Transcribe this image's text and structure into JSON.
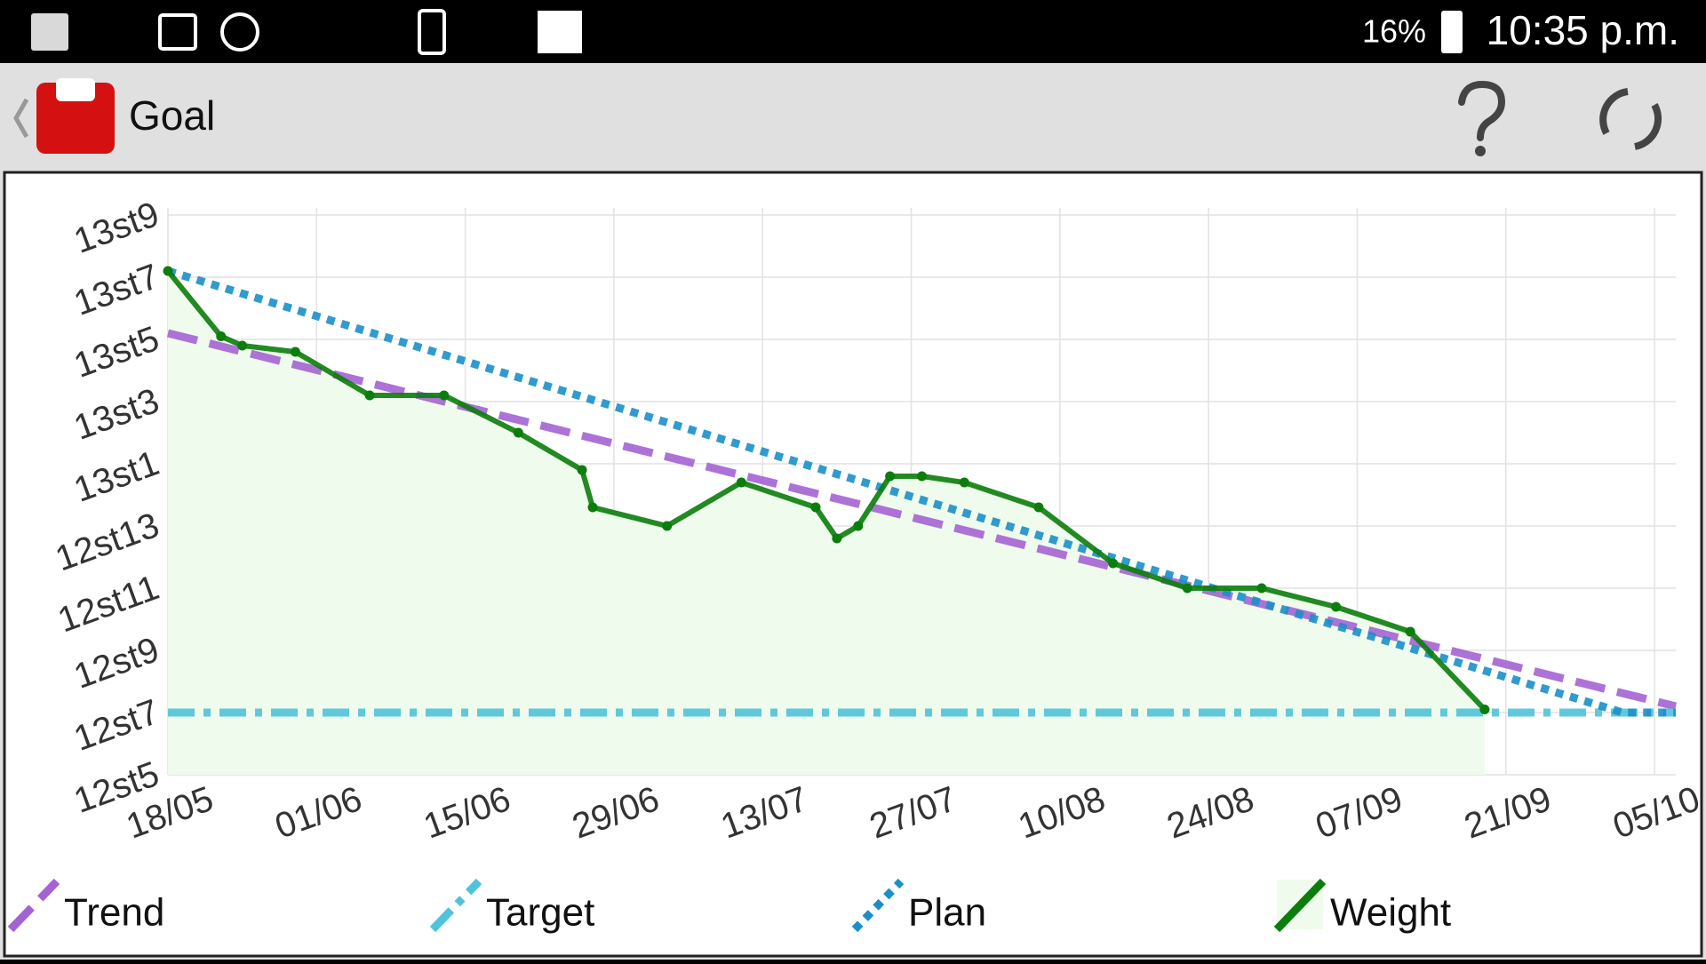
{
  "status_bar": {
    "battery": "16%",
    "time": "10:35 p.m."
  },
  "app_bar": {
    "title": "Goal"
  },
  "chart_data": {
    "type": "line",
    "xlim": [
      "18/05",
      "07/10"
    ],
    "xticks": [
      "18/05",
      "01/06",
      "15/06",
      "29/06",
      "13/07",
      "27/07",
      "10/08",
      "24/08",
      "07/09",
      "21/09",
      "05/10"
    ],
    "ylim": [
      173,
      191
    ],
    "yticks": [
      {
        "value": 173,
        "label": "12st5"
      },
      {
        "value": 175,
        "label": "12st7"
      },
      {
        "value": 177,
        "label": "12st9"
      },
      {
        "value": 179,
        "label": "12st11"
      },
      {
        "value": 181,
        "label": "12st13"
      },
      {
        "value": 183,
        "label": "13st1"
      },
      {
        "value": 185,
        "label": "13st3"
      },
      {
        "value": 187,
        "label": "13st5"
      },
      {
        "value": 189,
        "label": "13st7"
      },
      {
        "value": 191,
        "label": "13st9"
      }
    ],
    "grid": true,
    "series": [
      {
        "name": "Trend",
        "color": "#a463d4",
        "style": "dashed",
        "x": [
          "18/05",
          "07/10"
        ],
        "values": [
          187.2,
          175.2
        ]
      },
      {
        "name": "Target",
        "color": "#4fc3d9",
        "style": "dashdot",
        "x": [
          "18/05",
          "07/10"
        ],
        "values": [
          175,
          175
        ]
      },
      {
        "name": "Plan",
        "color": "#1b8fc9",
        "style": "dotted",
        "x": [
          "18/05",
          "02/10",
          "07/10"
        ],
        "values": [
          189.2,
          175,
          175
        ]
      },
      {
        "name": "Weight",
        "color": "#0b7d0b",
        "style": "solid",
        "fill_color": "#effbec",
        "markers": true,
        "x": [
          "18/05",
          "23/05",
          "25/05",
          "30/05",
          "06/06",
          "13/06",
          "20/06",
          "26/06",
          "27/06",
          "04/07",
          "11/07",
          "18/07",
          "20/07",
          "22/07",
          "25/07",
          "28/07",
          "01/08",
          "08/08",
          "15/08",
          "22/08",
          "29/08",
          "05/09",
          "12/09",
          "19/09"
        ],
        "values": [
          189.2,
          187.1,
          186.8,
          186.6,
          185.2,
          185.2,
          184.0,
          182.8,
          181.6,
          181.0,
          182.4,
          181.6,
          180.6,
          181.0,
          182.6,
          182.6,
          182.4,
          181.6,
          179.8,
          179.0,
          179.0,
          178.4,
          177.6,
          175.1
        ]
      }
    ]
  }
}
